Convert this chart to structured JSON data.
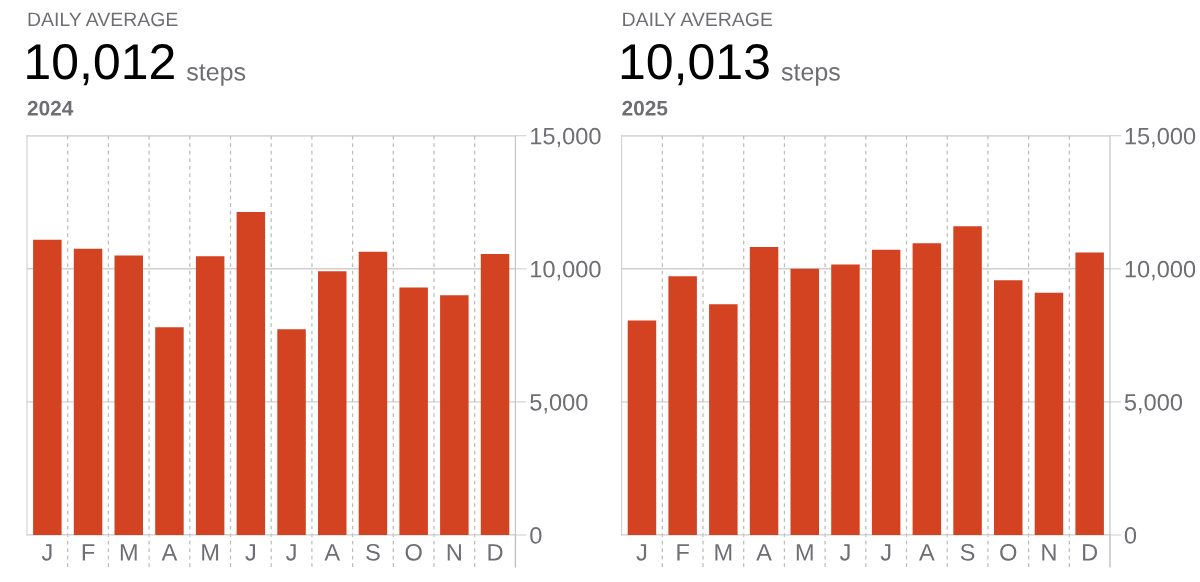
{
  "chart_data": [
    {
      "type": "bar",
      "title": "10,012",
      "subtitle": "2024",
      "annotations": [
        "DAILY AVERAGE",
        "steps"
      ],
      "categories": [
        "J",
        "F",
        "M",
        "A",
        "M",
        "J",
        "J",
        "A",
        "S",
        "O",
        "N",
        "D"
      ],
      "values": [
        11090,
        10750,
        10500,
        7800,
        10470,
        12130,
        7730,
        9910,
        10640,
        9300,
        9010,
        10560
      ],
      "color": "#d34221",
      "ylim": [
        0,
        15000
      ],
      "yticks": [
        0,
        {
          "value": 5000,
          "label": "5,000"
        },
        {
          "value": 10000,
          "label": "10,000"
        },
        {
          "value": 15000,
          "label": "15,000"
        }
      ],
      "grid": true
    },
    {
      "type": "bar",
      "title": "10,013",
      "subtitle": "2025",
      "annotations": [
        "DAILY AVERAGE",
        "steps"
      ],
      "categories": [
        "J",
        "F",
        "M",
        "A",
        "M",
        "J",
        "J",
        "A",
        "S",
        "O",
        "N",
        "D"
      ],
      "values": [
        8060,
        9720,
        8670,
        10820,
        10000,
        10160,
        10720,
        10960,
        11600,
        9570,
        9100,
        10610
      ],
      "color": "#d34221",
      "ylim": [
        0,
        15000
      ],
      "yticks": [
        0,
        {
          "value": 5000,
          "label": "5,000"
        },
        {
          "value": 10000,
          "label": "10,000"
        },
        {
          "value": 15000,
          "label": "15,000"
        }
      ],
      "grid": true
    }
  ]
}
